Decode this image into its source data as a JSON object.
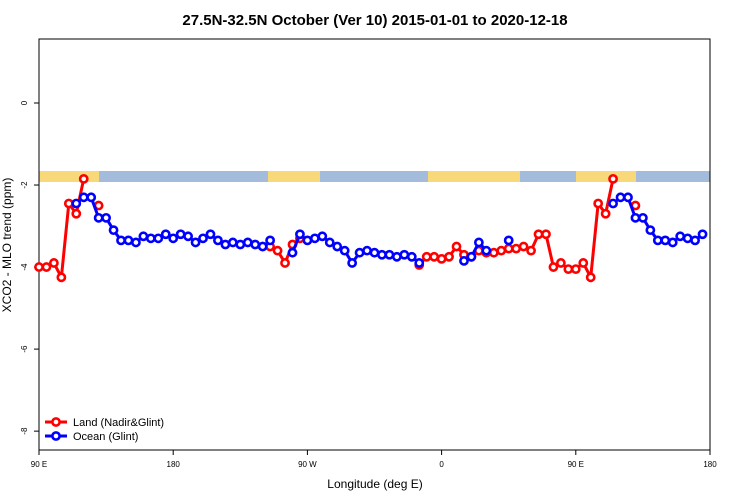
{
  "chart_data": {
    "type": "line",
    "title": "27.5N-32.5N October (Ver 10)   2015-01-01 to 2020-12-18",
    "x_label": "Longitude (deg E)",
    "y_label": "XCO2 - MLO trend (ppm)",
    "x": [
      90,
      95,
      100,
      105,
      110,
      115,
      120,
      125,
      130,
      135,
      140,
      145,
      150,
      155,
      160,
      165,
      170,
      175,
      180,
      185,
      190,
      195,
      200,
      205,
      210,
      215,
      220,
      225,
      230,
      235,
      240,
      245,
      250,
      255,
      260,
      265,
      270,
      275,
      280,
      285,
      290,
      295,
      300,
      305,
      310,
      315,
      320,
      325,
      330,
      335,
      340,
      345,
      350,
      355,
      360,
      365,
      370,
      375,
      380,
      385,
      390,
      395,
      400,
      405,
      410,
      415,
      420,
      425,
      430,
      435,
      440,
      445,
      450,
      455,
      460,
      465,
      470,
      475,
      480,
      485,
      490,
      495,
      500,
      505,
      510,
      515,
      520,
      525,
      530,
      535,
      540
    ],
    "series": [
      {
        "name": "Land (Nadir&Glint)",
        "color": "#ff0000",
        "values": [
          -4.0,
          -4.0,
          -3.9,
          -4.25,
          -2.45,
          -2.7,
          -1.85,
          null,
          -2.5,
          null,
          null,
          null,
          null,
          null,
          null,
          null,
          null,
          null,
          null,
          null,
          null,
          null,
          null,
          null,
          null,
          null,
          null,
          null,
          null,
          null,
          null,
          -3.5,
          -3.6,
          -3.9,
          -3.45,
          -3.3,
          null,
          null,
          null,
          null,
          null,
          null,
          null,
          null,
          null,
          null,
          null,
          null,
          null,
          null,
          null,
          -3.95,
          -3.75,
          -3.75,
          -3.8,
          -3.75,
          -3.5,
          -3.7,
          -3.75,
          -3.6,
          -3.65,
          -3.65,
          -3.6,
          -3.55,
          -3.55,
          -3.5,
          -3.6,
          -3.2,
          -3.2,
          -4.0,
          -3.9,
          -4.05,
          -4.05,
          -3.9,
          -4.25,
          -2.45,
          -2.7,
          -1.85,
          null,
          null,
          -2.5,
          null,
          null,
          null,
          null,
          null,
          null,
          null,
          null,
          null,
          null
        ]
      },
      {
        "name": "Ocean (Glint)",
        "color": "#0000ff",
        "values": [
          null,
          null,
          null,
          null,
          null,
          -2.45,
          -2.3,
          -2.3,
          -2.8,
          -2.8,
          -3.1,
          -3.35,
          -3.35,
          -3.4,
          -3.25,
          -3.3,
          -3.3,
          -3.2,
          -3.3,
          -3.2,
          -3.25,
          -3.4,
          -3.3,
          -3.2,
          -3.35,
          -3.45,
          -3.4,
          -3.45,
          -3.4,
          -3.45,
          -3.5,
          -3.35,
          null,
          null,
          -3.65,
          -3.2,
          -3.35,
          -3.3,
          -3.25,
          -3.4,
          -3.5,
          -3.6,
          -3.9,
          -3.65,
          -3.6,
          -3.65,
          -3.7,
          -3.7,
          -3.75,
          -3.7,
          -3.75,
          -3.9,
          null,
          null,
          null,
          null,
          null,
          -3.85,
          -3.75,
          -3.4,
          -3.6,
          null,
          null,
          -3.35,
          null,
          null,
          null,
          null,
          null,
          null,
          null,
          null,
          null,
          null,
          null,
          null,
          null,
          -2.45,
          -2.3,
          -2.3,
          -2.8,
          -2.8,
          -3.1,
          -3.35,
          -3.35,
          -3.4,
          -3.25,
          -3.3,
          -3.35,
          -3.2,
          null
        ]
      }
    ],
    "xlim": [
      90,
      540
    ],
    "xticks": [
      {
        "value": 90,
        "label": "90 E"
      },
      180,
      {
        "value": 270,
        "label": "90 W"
      },
      {
        "value": 360,
        "label": "0"
      },
      {
        "value": 450,
        "label": "90 E"
      },
      {
        "value": 540,
        "label": "180"
      }
    ],
    "ylim": [
      -8.46,
      1.56
    ],
    "yticks": [
      0,
      -2,
      -4,
      -6,
      -8
    ],
    "legend": "bottom-left"
  }
}
